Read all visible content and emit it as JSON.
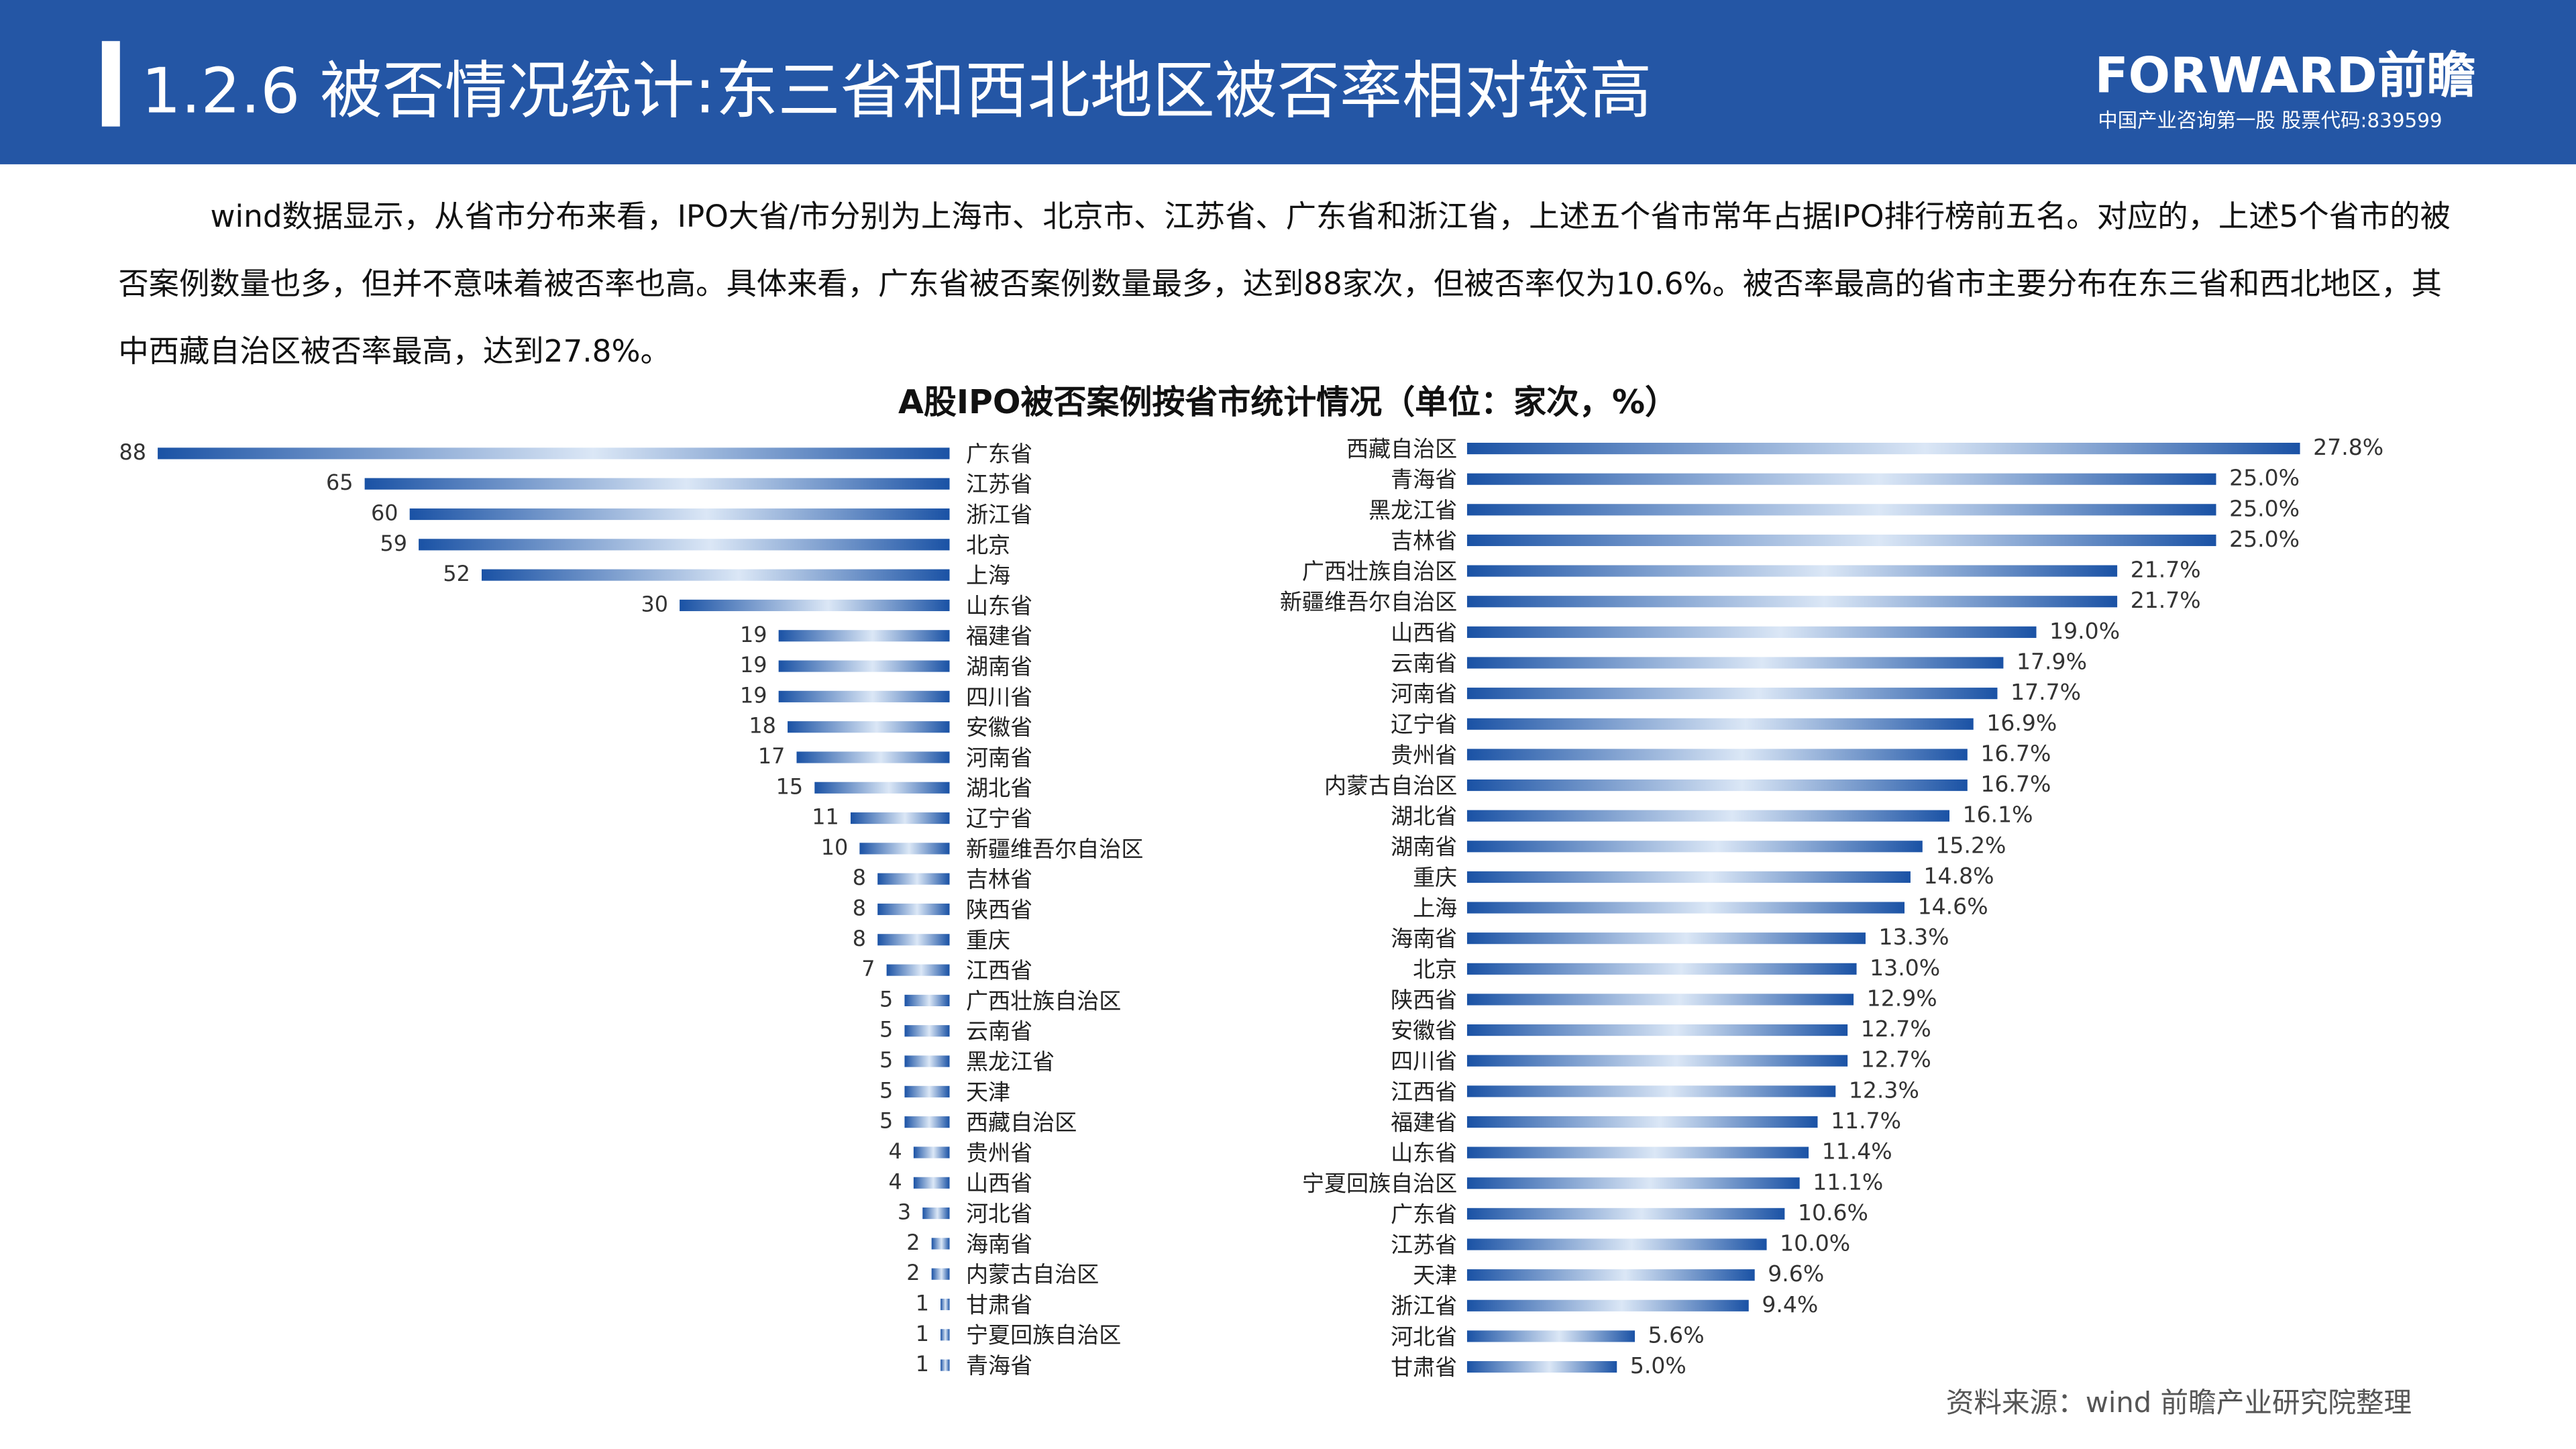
{
  "header": {
    "title": "1.2.6 被否情况统计:东三省和西北地区被否率相对较高",
    "logo": "FORWARD前瞻",
    "tagline": "中国产业咨询第一股 股票代码:839599"
  },
  "paragraph": "wind数据显示，从省市分布来看，IPO大省/市分别为上海市、北京市、江苏省、广东省和浙江省，上述五个省市常年占据IPO排行榜前五名。对应的，上述5个省市的被否案例数量也多，但并不意味着被否率也高。具体来看，广东省被否案例数量最多，达到88家次，但被否率仅为10.6%。被否率最高的省市主要分布在东三省和西北地区，其中西藏自治区被否率最高，达到27.8%。",
  "title": "A股IPO被否案例按省市统计情况（单位：家次，%）",
  "chart_data": [
    {
      "type": "bar",
      "color": "#1a52a5",
      "categories": [
        "广东省",
        "江苏省",
        "浙江省",
        "北京",
        "上海",
        "山东省",
        "福建省",
        "湖南省",
        "四川省",
        "安徽省",
        "河南省",
        "湖北省",
        "辽宁省",
        "新疆维吾尔自治区",
        "吉林省",
        "陕西省",
        "重庆",
        "江西省",
        "广西壮族自治区",
        "云南省",
        "黑龙江省",
        "天津",
        "西藏自治区",
        "贵州省",
        "山西省",
        "河北省",
        "海南省",
        "内蒙古自治区",
        "甘肃省",
        "宁夏回族自治区",
        "青海省"
      ],
      "values": [
        88,
        65,
        60,
        59,
        52,
        30,
        19,
        19,
        19,
        18,
        17,
        15,
        11,
        10,
        8,
        8,
        8,
        7,
        5,
        5,
        5,
        5,
        5,
        4,
        4,
        3,
        2,
        2,
        1,
        1,
        1
      ]
    },
    {
      "type": "bar",
      "color": "#1a52a5",
      "categories": [
        "西藏自治区",
        "青海省",
        "黑龙江省",
        "吉林省",
        "广西壮族自治区",
        "新疆维吾尔自治区",
        "山西省",
        "云南省",
        "河南省",
        "辽宁省",
        "贵州省",
        "内蒙古自治区",
        "湖北省",
        "湖南省",
        "重庆",
        "上海",
        "海南省",
        "北京",
        "陕西省",
        "安徽省",
        "四川省",
        "江西省",
        "福建省",
        "山东省",
        "宁夏回族自治区",
        "广东省",
        "江苏省",
        "天津",
        "浙江省",
        "河北省",
        "甘肃省"
      ],
      "values": [
        27.8,
        25,
        25,
        25,
        21.7,
        21.7,
        19,
        17.9,
        17.7,
        16.9,
        16.7,
        16.7,
        16.1,
        15.2,
        14.8,
        14.6,
        13.3,
        13,
        12.9,
        12.7,
        12.7,
        12.3,
        11.7,
        11.4,
        11.1,
        10.6,
        10,
        9.6,
        9.4,
        5.6,
        5
      ],
      "value_labels": [
        "27.8%",
        "25.0%",
        "25.0%",
        "25.0%",
        "21.7%",
        "21.7%",
        "19.0%",
        "17.9%",
        "17.7%",
        "16.9%",
        "16.7%",
        "16.7%",
        "16.1%",
        "15.2%",
        "14.8%",
        "14.6%",
        "13.3%",
        "13.0%",
        "12.9%",
        "12.7%",
        "12.7%",
        "12.3%",
        "11.7%",
        "11.4%",
        "11.1%",
        "10.6%",
        "10.0%",
        "9.6%",
        "9.4%",
        "5.6%",
        "5.0%"
      ]
    }
  ],
  "source": "资料来源：wind 前瞻产业研究院整理"
}
